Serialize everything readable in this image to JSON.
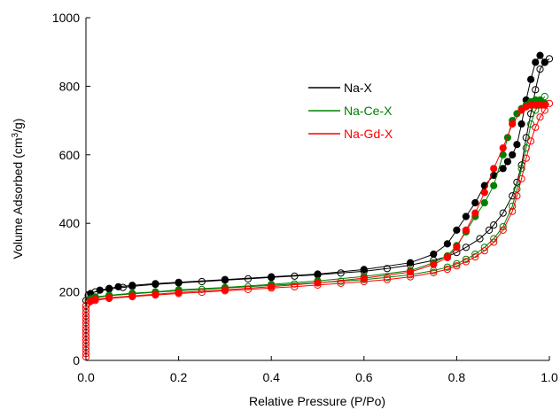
{
  "chart_data": {
    "type": "scatter",
    "xlabel": "Relative Pressure (P/Po)",
    "ylabel_main": "Volume Adsorbed (cm",
    "ylabel_sup": "3",
    "ylabel_tail": "/g)",
    "xlim": [
      0,
      1.0
    ],
    "ylim": [
      0,
      1000
    ],
    "x_ticks": [
      {
        "value": 0,
        "label": "0.0"
      },
      {
        "value": 0.2,
        "label": "0.2"
      },
      {
        "value": 0.4,
        "label": "0.4"
      },
      {
        "value": 0.6,
        "label": "0.6"
      },
      {
        "value": 0.8,
        "label": "0.8"
      },
      {
        "value": 1.0,
        "label": "1.0"
      }
    ],
    "y_ticks": [
      {
        "value": 0,
        "label": "0"
      },
      {
        "value": 200,
        "label": "200"
      },
      {
        "value": 400,
        "label": "400"
      },
      {
        "value": 600,
        "label": "600"
      },
      {
        "value": 800,
        "label": "800"
      },
      {
        "value": 1000,
        "label": "1000"
      }
    ],
    "grid": false,
    "legend_position": "upper-middle",
    "series": [
      {
        "name": "Na-X",
        "color": "#000000",
        "adsorption": [
          [
            0.0,
            175
          ],
          [
            0.005,
            190
          ],
          [
            0.02,
            200
          ],
          [
            0.05,
            208
          ],
          [
            0.08,
            213
          ],
          [
            0.1,
            216
          ],
          [
            0.15,
            222
          ],
          [
            0.2,
            226
          ],
          [
            0.25,
            230
          ],
          [
            0.3,
            234
          ],
          [
            0.35,
            238
          ],
          [
            0.4,
            242
          ],
          [
            0.45,
            246
          ],
          [
            0.5,
            250
          ],
          [
            0.55,
            255
          ],
          [
            0.6,
            260
          ],
          [
            0.65,
            268
          ],
          [
            0.7,
            278
          ],
          [
            0.75,
            292
          ],
          [
            0.78,
            303
          ],
          [
            0.8,
            315
          ],
          [
            0.82,
            330
          ],
          [
            0.85,
            355
          ],
          [
            0.87,
            380
          ],
          [
            0.88,
            395
          ],
          [
            0.9,
            430
          ],
          [
            0.92,
            480
          ],
          [
            0.93,
            520
          ],
          [
            0.94,
            570
          ],
          [
            0.95,
            650
          ],
          [
            0.96,
            720
          ],
          [
            0.97,
            790
          ],
          [
            0.98,
            850
          ],
          [
            0.99,
            870
          ],
          [
            1.0,
            880
          ]
        ],
        "desorption": [
          [
            0.99,
            870
          ],
          [
            0.98,
            890
          ],
          [
            0.97,
            870
          ],
          [
            0.96,
            820
          ],
          [
            0.95,
            760
          ],
          [
            0.94,
            690
          ],
          [
            0.93,
            630
          ],
          [
            0.92,
            600
          ],
          [
            0.91,
            580
          ],
          [
            0.9,
            560
          ],
          [
            0.88,
            540
          ],
          [
            0.86,
            510
          ],
          [
            0.84,
            460
          ],
          [
            0.82,
            420
          ],
          [
            0.8,
            380
          ],
          [
            0.78,
            340
          ],
          [
            0.75,
            310
          ],
          [
            0.7,
            285
          ],
          [
            0.6,
            265
          ],
          [
            0.5,
            252
          ],
          [
            0.4,
            244
          ],
          [
            0.3,
            236
          ],
          [
            0.2,
            228
          ],
          [
            0.15,
            224
          ],
          [
            0.1,
            219
          ],
          [
            0.07,
            215
          ],
          [
            0.05,
            210
          ],
          [
            0.03,
            205
          ],
          [
            0.01,
            195
          ]
        ]
      },
      {
        "name": "Na-Ce-X",
        "color": "#008000",
        "adsorption": [
          [
            0.0,
            160
          ],
          [
            0.005,
            175
          ],
          [
            0.02,
            183
          ],
          [
            0.05,
            189
          ],
          [
            0.1,
            194
          ],
          [
            0.15,
            199
          ],
          [
            0.2,
            203
          ],
          [
            0.25,
            207
          ],
          [
            0.3,
            211
          ],
          [
            0.35,
            215
          ],
          [
            0.4,
            219
          ],
          [
            0.45,
            223
          ],
          [
            0.5,
            227
          ],
          [
            0.55,
            231
          ],
          [
            0.6,
            236
          ],
          [
            0.65,
            242
          ],
          [
            0.7,
            250
          ],
          [
            0.75,
            262
          ],
          [
            0.78,
            272
          ],
          [
            0.8,
            282
          ],
          [
            0.82,
            295
          ],
          [
            0.84,
            310
          ],
          [
            0.86,
            330
          ],
          [
            0.88,
            355
          ],
          [
            0.9,
            390
          ],
          [
            0.92,
            450
          ],
          [
            0.93,
            500
          ],
          [
            0.94,
            560
          ],
          [
            0.95,
            620
          ],
          [
            0.96,
            690
          ],
          [
            0.97,
            730
          ],
          [
            0.98,
            750
          ],
          [
            0.99,
            770
          ]
        ],
        "desorption": [
          [
            0.99,
            750
          ],
          [
            0.98,
            760
          ],
          [
            0.97,
            760
          ],
          [
            0.96,
            755
          ],
          [
            0.95,
            745
          ],
          [
            0.94,
            735
          ],
          [
            0.93,
            720
          ],
          [
            0.92,
            700
          ],
          [
            0.91,
            650
          ],
          [
            0.9,
            600
          ],
          [
            0.88,
            510
          ],
          [
            0.86,
            460
          ],
          [
            0.84,
            420
          ],
          [
            0.82,
            375
          ],
          [
            0.8,
            335
          ],
          [
            0.78,
            305
          ],
          [
            0.75,
            285
          ],
          [
            0.7,
            262
          ],
          [
            0.6,
            245
          ],
          [
            0.5,
            232
          ],
          [
            0.4,
            222
          ],
          [
            0.3,
            213
          ],
          [
            0.2,
            206
          ],
          [
            0.15,
            200
          ],
          [
            0.1,
            196
          ],
          [
            0.05,
            190
          ],
          [
            0.02,
            185
          ],
          [
            0.01,
            180
          ]
        ]
      },
      {
        "name": "Na-Gd-X",
        "color": "#ff0000",
        "adsorption": [
          [
            0.0,
            10
          ],
          [
            0.0,
            20
          ],
          [
            0.0,
            30
          ],
          [
            0.0,
            40
          ],
          [
            0.0,
            50
          ],
          [
            0.0,
            60
          ],
          [
            0.0,
            70
          ],
          [
            0.0,
            80
          ],
          [
            0.0,
            90
          ],
          [
            0.0,
            100
          ],
          [
            0.0,
            110
          ],
          [
            0.0,
            120
          ],
          [
            0.0,
            130
          ],
          [
            0.0,
            140
          ],
          [
            0.0,
            150
          ],
          [
            0.0,
            160
          ],
          [
            0.005,
            168
          ],
          [
            0.02,
            175
          ],
          [
            0.05,
            181
          ],
          [
            0.1,
            186
          ],
          [
            0.15,
            191
          ],
          [
            0.2,
            195
          ],
          [
            0.25,
            199
          ],
          [
            0.3,
            203
          ],
          [
            0.35,
            207
          ],
          [
            0.4,
            211
          ],
          [
            0.45,
            215
          ],
          [
            0.5,
            220
          ],
          [
            0.55,
            225
          ],
          [
            0.6,
            230
          ],
          [
            0.65,
            236
          ],
          [
            0.7,
            244
          ],
          [
            0.75,
            256
          ],
          [
            0.78,
            266
          ],
          [
            0.8,
            276
          ],
          [
            0.82,
            288
          ],
          [
            0.84,
            302
          ],
          [
            0.86,
            320
          ],
          [
            0.88,
            345
          ],
          [
            0.9,
            380
          ],
          [
            0.92,
            435
          ],
          [
            0.93,
            480
          ],
          [
            0.94,
            530
          ],
          [
            0.95,
            590
          ],
          [
            0.96,
            640
          ],
          [
            0.97,
            680
          ],
          [
            0.98,
            710
          ],
          [
            0.99,
            730
          ],
          [
            1.0,
            750
          ]
        ],
        "desorption": [
          [
            0.99,
            745
          ],
          [
            0.98,
            745
          ],
          [
            0.97,
            745
          ],
          [
            0.96,
            745
          ],
          [
            0.95,
            740
          ],
          [
            0.94,
            730
          ],
          [
            0.92,
            690
          ],
          [
            0.9,
            620
          ],
          [
            0.88,
            560
          ],
          [
            0.86,
            490
          ],
          [
            0.84,
            430
          ],
          [
            0.82,
            380
          ],
          [
            0.8,
            330
          ],
          [
            0.78,
            300
          ],
          [
            0.75,
            280
          ],
          [
            0.7,
            258
          ],
          [
            0.6,
            240
          ],
          [
            0.5,
            226
          ],
          [
            0.4,
            215
          ],
          [
            0.3,
            206
          ],
          [
            0.2,
            198
          ],
          [
            0.15,
            193
          ],
          [
            0.1,
            188
          ],
          [
            0.05,
            183
          ],
          [
            0.02,
            178
          ],
          [
            0.01,
            172
          ]
        ]
      }
    ]
  }
}
